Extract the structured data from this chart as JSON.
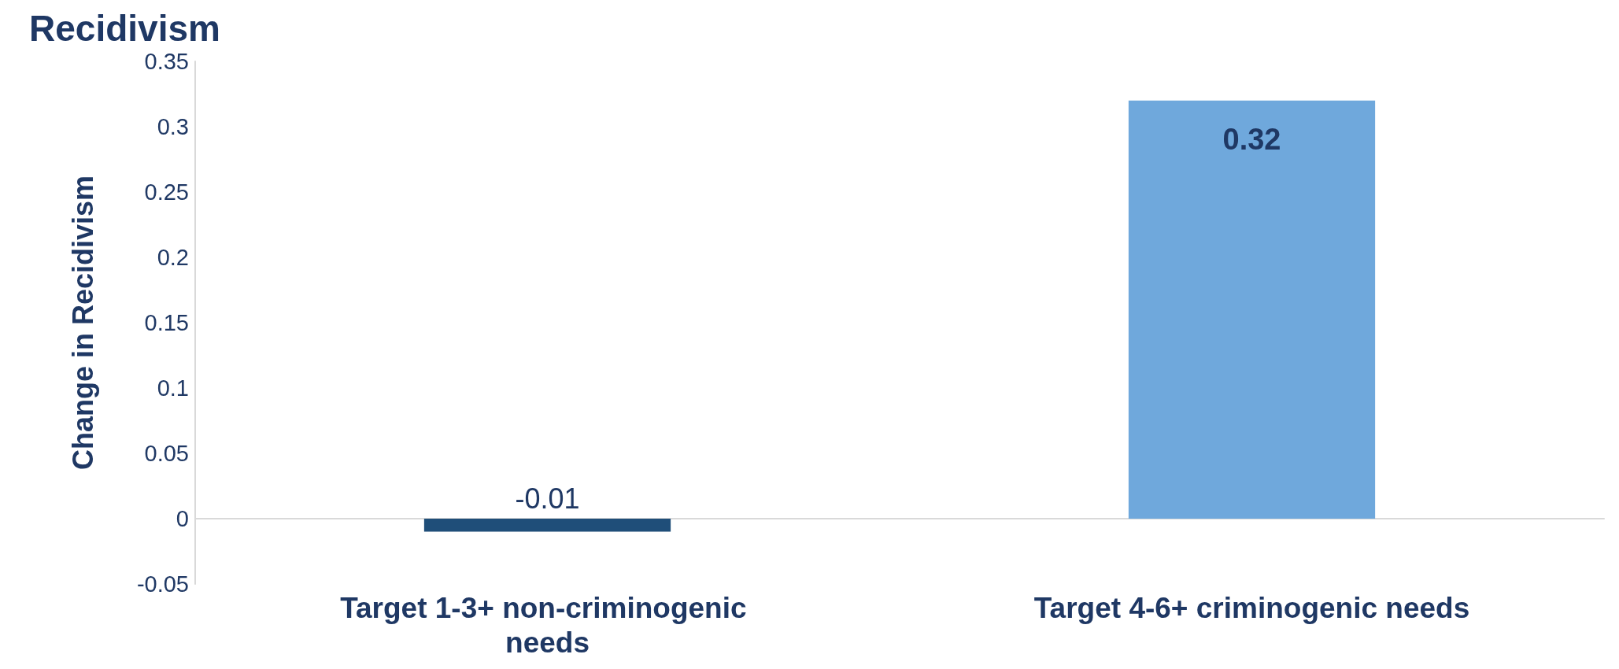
{
  "chart_data": {
    "type": "bar",
    "title": "Recidivism",
    "ylabel": "Change in Recidivism",
    "categories": [
      "Target 1-3+ non-criminogenic needs",
      "Target 4-6+ criminogenic needs"
    ],
    "values": [
      -0.01,
      0.32
    ],
    "colors": [
      "#1f4e79",
      "#6fa8dc"
    ],
    "ylim": [
      -0.05,
      0.35
    ],
    "yticks": [
      -0.05,
      0,
      0.05,
      0.1,
      0.15,
      0.2,
      0.25,
      0.3,
      0.35
    ],
    "data_labels": true
  }
}
